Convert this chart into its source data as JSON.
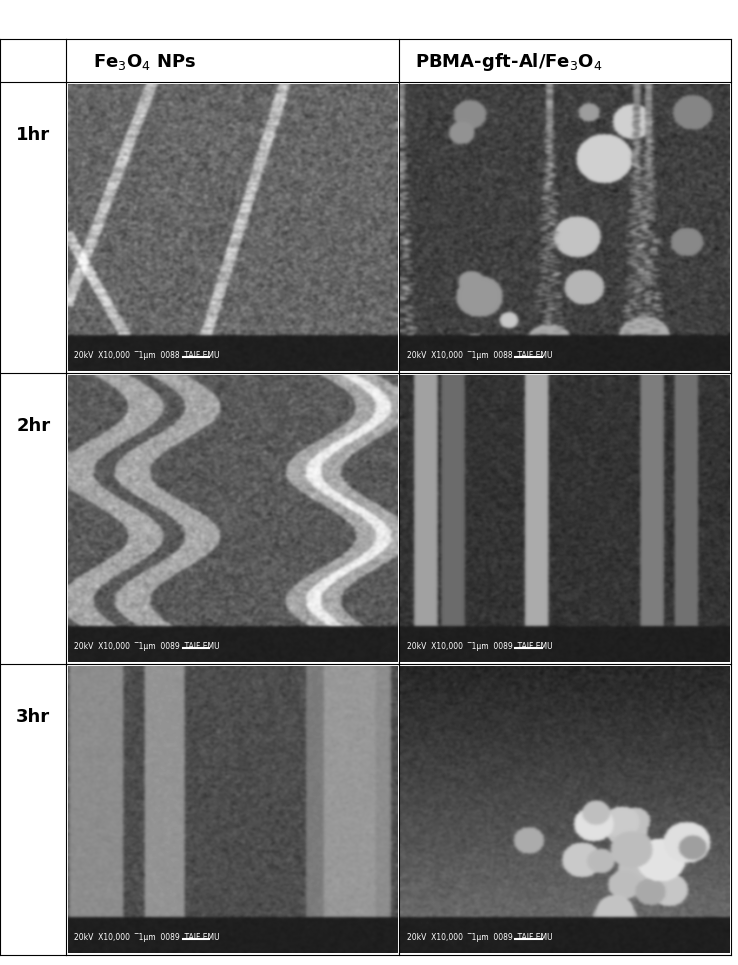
{
  "col_headers": [
    "Fe₃O₄ NPs",
    "PBMA-gft-Al/Fe₃O₄"
  ],
  "row_labels": [
    "1hr",
    "2hr",
    "3hr"
  ],
  "background_color": "#ffffff",
  "border_color": "#000000",
  "header_fontsize": 13,
  "label_fontsize": 13,
  "scalebar_text": [
    "20kV  X10,000  1μm  0088  TAIF EMU",
    "20kV  X10,000  1μm  0088  TAIF EMU",
    "20kV  X10,000  1μm  0089  TAIF EMU",
    "20kV  X10,000  1μm  0089  TAIF EMU",
    "20kV  X10,000  1μm  0089  TAIF EMU",
    "20kV  X10,000  1μm  0089  TAIF EMU"
  ],
  "fig_width": 7.38,
  "fig_height": 9.65
}
